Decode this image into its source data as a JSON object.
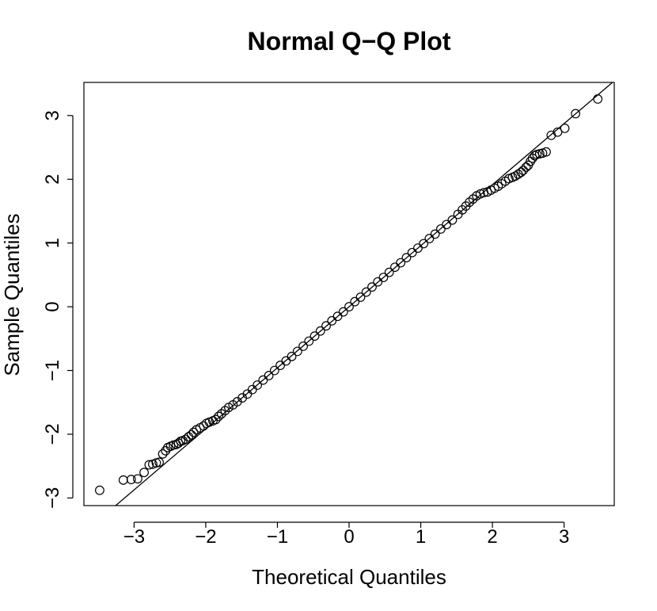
{
  "chart_data": {
    "type": "scatter",
    "title": "Normal Q−Q Plot",
    "xlabel": "Theoretical Quantiles",
    "ylabel": "Sample Quantiles",
    "xlim": [
      -3.7,
      3.7
    ],
    "ylim": [
      -3.12,
      3.52
    ],
    "x_ticks": [
      -3,
      -2,
      -1,
      0,
      1,
      2,
      3
    ],
    "x_tick_labels": [
      "−3",
      "−2",
      "−1",
      "0",
      "1",
      "2",
      "3"
    ],
    "y_ticks": [
      -3,
      -2,
      -1,
      0,
      1,
      2,
      3
    ],
    "y_tick_labels": [
      "−3",
      "−2",
      "−1",
      "0",
      "1",
      "2",
      "3"
    ],
    "grid": false,
    "legend": null,
    "reference_line": {
      "slope": 0.9578,
      "intercept": 0.0
    },
    "series": [
      {
        "points": [
          [
            -3.48,
            -2.88
          ],
          [
            -3.15,
            -2.72
          ],
          [
            -3.04,
            -2.71
          ],
          [
            -2.95,
            -2.7
          ],
          [
            -2.86,
            -2.6
          ],
          [
            -2.79,
            -2.48
          ],
          [
            -2.74,
            -2.47
          ],
          [
            -2.69,
            -2.45
          ],
          [
            -2.65,
            -2.44
          ],
          [
            -2.6,
            -2.31
          ],
          [
            -2.56,
            -2.26
          ],
          [
            -2.53,
            -2.21
          ],
          [
            -2.49,
            -2.19
          ],
          [
            -2.45,
            -2.17
          ],
          [
            -2.41,
            -2.16
          ],
          [
            -2.38,
            -2.14
          ],
          [
            -2.35,
            -2.11
          ],
          [
            -2.32,
            -2.1
          ],
          [
            -2.28,
            -2.08
          ],
          [
            -2.24,
            -2.04
          ],
          [
            -2.2,
            -2.01
          ],
          [
            -2.17,
            -1.97
          ],
          [
            -2.13,
            -1.93
          ],
          [
            -2.08,
            -1.9
          ],
          [
            -2.03,
            -1.87
          ],
          [
            -1.99,
            -1.83
          ],
          [
            -1.95,
            -1.81
          ],
          [
            -1.9,
            -1.79
          ],
          [
            -1.86,
            -1.77
          ],
          [
            -1.82,
            -1.72
          ],
          [
            -1.78,
            -1.68
          ],
          [
            -1.73,
            -1.63
          ],
          [
            -1.68,
            -1.58
          ],
          [
            -1.62,
            -1.54
          ],
          [
            -1.56,
            -1.49
          ],
          [
            -1.49,
            -1.43
          ],
          [
            -1.42,
            -1.37
          ],
          [
            -1.35,
            -1.3
          ],
          [
            -1.28,
            -1.23
          ],
          [
            -1.2,
            -1.15
          ],
          [
            -1.12,
            -1.08
          ],
          [
            -1.04,
            -1.0
          ],
          [
            -0.96,
            -0.92
          ],
          [
            -0.88,
            -0.85
          ],
          [
            -0.8,
            -0.78
          ],
          [
            -0.72,
            -0.7
          ],
          [
            -0.64,
            -0.62
          ],
          [
            -0.56,
            -0.54
          ],
          [
            -0.48,
            -0.46
          ],
          [
            -0.4,
            -0.38
          ],
          [
            -0.32,
            -0.3
          ],
          [
            -0.24,
            -0.22
          ],
          [
            -0.16,
            -0.15
          ],
          [
            -0.08,
            -0.08
          ],
          [
            0.0,
            0.0
          ],
          [
            0.08,
            0.08
          ],
          [
            0.16,
            0.15
          ],
          [
            0.24,
            0.23
          ],
          [
            0.32,
            0.31
          ],
          [
            0.4,
            0.39
          ],
          [
            0.48,
            0.46
          ],
          [
            0.56,
            0.54
          ],
          [
            0.64,
            0.62
          ],
          [
            0.72,
            0.69
          ],
          [
            0.8,
            0.77
          ],
          [
            0.88,
            0.85
          ],
          [
            0.96,
            0.92
          ],
          [
            1.04,
            0.99
          ],
          [
            1.12,
            1.07
          ],
          [
            1.2,
            1.14
          ],
          [
            1.28,
            1.22
          ],
          [
            1.36,
            1.29
          ],
          [
            1.44,
            1.36
          ],
          [
            1.52,
            1.45
          ],
          [
            1.58,
            1.52
          ],
          [
            1.63,
            1.58
          ],
          [
            1.68,
            1.64
          ],
          [
            1.73,
            1.69
          ],
          [
            1.78,
            1.74
          ],
          [
            1.83,
            1.77
          ],
          [
            1.88,
            1.79
          ],
          [
            1.93,
            1.8
          ],
          [
            1.98,
            1.83
          ],
          [
            2.03,
            1.86
          ],
          [
            2.08,
            1.89
          ],
          [
            2.13,
            1.93
          ],
          [
            2.18,
            1.97
          ],
          [
            2.23,
            2.01
          ],
          [
            2.28,
            2.03
          ],
          [
            2.32,
            2.05
          ],
          [
            2.36,
            2.08
          ],
          [
            2.4,
            2.11
          ],
          [
            2.43,
            2.14
          ],
          [
            2.47,
            2.19
          ],
          [
            2.5,
            2.22
          ],
          [
            2.53,
            2.28
          ],
          [
            2.56,
            2.33
          ],
          [
            2.59,
            2.37
          ],
          [
            2.62,
            2.39
          ],
          [
            2.66,
            2.4
          ],
          [
            2.7,
            2.41
          ],
          [
            2.75,
            2.43
          ],
          [
            2.82,
            2.69
          ],
          [
            2.91,
            2.74
          ],
          [
            3.01,
            2.8
          ],
          [
            3.16,
            3.03
          ],
          [
            3.47,
            3.26
          ]
        ]
      }
    ]
  }
}
